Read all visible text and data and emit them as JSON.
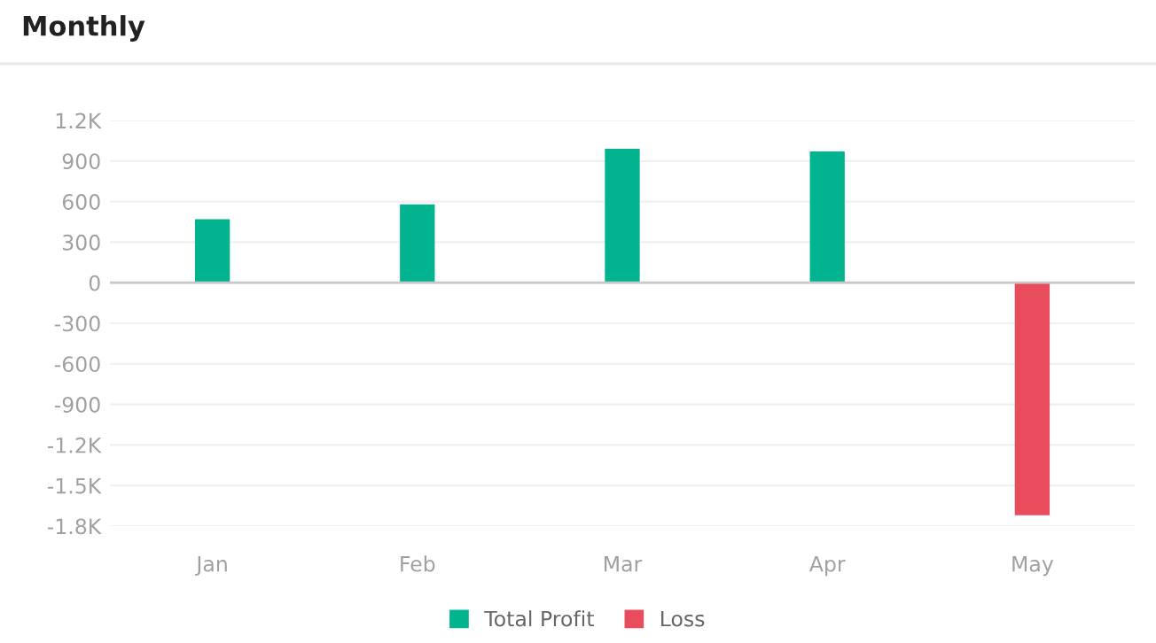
{
  "chart_data": {
    "type": "bar",
    "title": "Monthly",
    "categories": [
      "Jan",
      "Feb",
      "Mar",
      "Apr",
      "May"
    ],
    "series": [
      {
        "name": "Total Profit",
        "color": "#01b48f",
        "values": [
          470,
          580,
          990,
          970,
          null
        ]
      },
      {
        "name": "Loss",
        "color": "#e84c5d",
        "values": [
          null,
          null,
          null,
          null,
          -1720
        ]
      }
    ],
    "stacked": true,
    "ylim": [
      -1800,
      1200
    ],
    "yticks": [
      {
        "value": 1200,
        "label": "1.2K"
      },
      900,
      600,
      300,
      0,
      -300,
      -600,
      -900,
      {
        "value": -1200,
        "label": "-1.2K"
      },
      {
        "value": -1500,
        "label": "-1.5K"
      },
      {
        "value": -1800,
        "label": "-1.8K"
      }
    ],
    "ref_lines": [
      {
        "axis": "y",
        "value": 0,
        "label": null,
        "color": "#c8c8c8"
      }
    ],
    "grid": "y",
    "legend": "bottom"
  }
}
